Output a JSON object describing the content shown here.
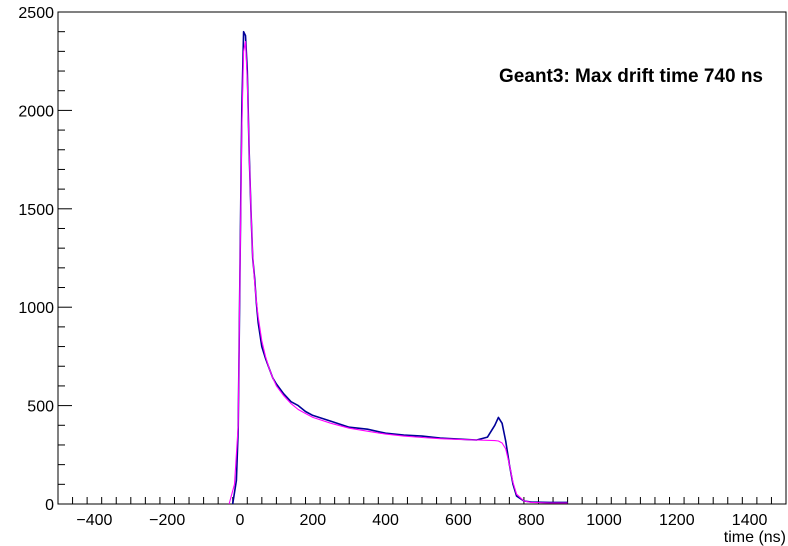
{
  "chart_data": {
    "type": "line",
    "title": "Geant3: Max drift time 740 ns",
    "xlabel": "time (ns)",
    "ylabel": "",
    "xlim": [
      -500,
      1500
    ],
    "ylim": [
      0,
      2500
    ],
    "x_ticks": [
      -400,
      -200,
      0,
      200,
      400,
      600,
      800,
      1000,
      1200,
      1400
    ],
    "y_ticks": [
      0,
      500,
      1000,
      1500,
      2000,
      2500
    ],
    "x_tick_labels": [
      "−400",
      "−200",
      "0",
      "200",
      "400",
      "600",
      "800",
      "1000",
      "1200",
      "1400"
    ],
    "y_tick_labels": [
      "0",
      "500",
      "1000",
      "1500",
      "2000",
      "2500"
    ],
    "grid": false,
    "series": [
      {
        "style": "histogram",
        "color": "#000099",
        "x": [
          -20,
          -10,
          -5,
          0,
          5,
          10,
          15,
          20,
          25,
          30,
          35,
          40,
          45,
          50,
          60,
          70,
          80,
          90,
          100,
          120,
          140,
          160,
          180,
          200,
          250,
          300,
          350,
          400,
          450,
          500,
          550,
          600,
          650,
          680,
          700,
          710,
          720,
          730,
          740,
          750,
          760,
          780,
          800,
          850,
          900
        ],
        "values": [
          0,
          120,
          380,
          1200,
          2000,
          2400,
          2380,
          2200,
          1800,
          1500,
          1250,
          1150,
          1020,
          920,
          800,
          740,
          690,
          640,
          610,
          560,
          520,
          500,
          470,
          450,
          420,
          390,
          380,
          360,
          350,
          345,
          335,
          330,
          325,
          340,
          400,
          440,
          410,
          320,
          200,
          100,
          40,
          15,
          10,
          8,
          8
        ]
      },
      {
        "style": "fit",
        "color": "#ff00ff",
        "x": [
          -30,
          -15,
          -5,
          0,
          5,
          10,
          15,
          20,
          25,
          30,
          35,
          40,
          45,
          50,
          60,
          70,
          80,
          90,
          100,
          120,
          140,
          160,
          180,
          200,
          250,
          300,
          350,
          400,
          450,
          500,
          550,
          600,
          650,
          700,
          710,
          720,
          730,
          740,
          750,
          760,
          780,
          800,
          850,
          900
        ],
        "values": [
          0,
          100,
          400,
          1200,
          1900,
          2300,
          2350,
          2150,
          1800,
          1500,
          1260,
          1130,
          1030,
          950,
          830,
          750,
          690,
          640,
          600,
          550,
          510,
          480,
          460,
          440,
          410,
          385,
          370,
          355,
          345,
          338,
          332,
          328,
          325,
          322,
          320,
          310,
          280,
          200,
          110,
          50,
          15,
          8,
          5,
          5
        ]
      }
    ]
  }
}
